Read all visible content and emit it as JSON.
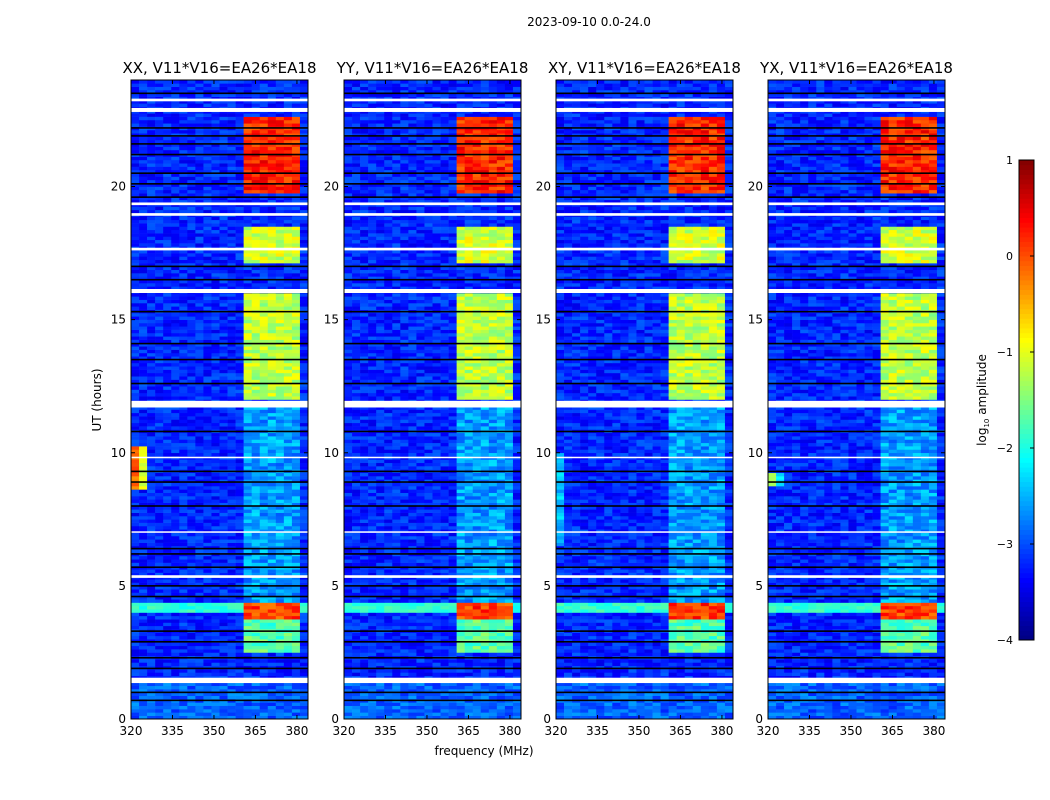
{
  "chart_data": {
    "type": "heatmap",
    "suptitle": "2023-09-10 0.0-24.0",
    "xlabel": "frequency (MHz)",
    "ylabel": "UT (hours)",
    "xlim": [
      320,
      384
    ],
    "ylim": [
      0,
      24
    ],
    "xticks": [
      "320",
      "335",
      "350",
      "365",
      "380"
    ],
    "xtick_values": [
      320,
      335,
      350,
      365,
      380
    ],
    "yticks": [
      "0",
      "5",
      "10",
      "15",
      "20"
    ],
    "ytick_values": [
      0,
      5,
      10,
      15,
      20
    ],
    "colorbar": {
      "label": "log10 amplitude",
      "label_main": "log",
      "label_sub": "10",
      "label_rest": " amplitude",
      "range": [
        -4,
        1
      ],
      "ticks": [
        "−4",
        "−3",
        "−2",
        "−1",
        "0",
        "1"
      ],
      "tick_values": [
        -4,
        -3,
        -2,
        -1,
        0,
        1
      ],
      "colormap": "jet"
    },
    "background_level": -3.2,
    "flagged_white_hours": [
      [
        1.35,
        1.55
      ],
      [
        11.7,
        11.95
      ],
      [
        16.0,
        16.15
      ],
      [
        17.6,
        17.7
      ],
      [
        18.9,
        19.0
      ],
      [
        19.3,
        19.4
      ],
      [
        22.8,
        22.95
      ],
      [
        23.2,
        23.3
      ],
      [
        5.3,
        5.4
      ],
      [
        7.0,
        7.05
      ],
      [
        9.8,
        9.85
      ]
    ],
    "black_line_hours": [
      0.7,
      1.0,
      1.9,
      2.3,
      2.9,
      3.3,
      4.6,
      5.0,
      5.7,
      6.2,
      6.4,
      8.0,
      8.9,
      9.3,
      10.8,
      12.6,
      13.5,
      14.1,
      15.3,
      16.5,
      17.0,
      19.6,
      20.1,
      20.5,
      21.2,
      21.6,
      21.9,
      22.2,
      23.5
    ],
    "bright_band_mhz": [
      362,
      382
    ],
    "bright_subcolumns_mhz": [
      [
        362,
        366.5
      ],
      [
        367.5,
        371
      ],
      [
        372,
        375.5
      ],
      [
        376.5,
        381
      ]
    ],
    "features": [
      {
        "hours": [
          11.95,
          16.0
        ],
        "level": -1.2
      },
      {
        "hours": [
          17.1,
          18.5
        ],
        "level": -1.1
      },
      {
        "hours": [
          19.8,
          22.6
        ],
        "level": 0.2
      },
      {
        "hours": [
          3.7,
          4.4
        ],
        "level": 0.1
      },
      {
        "hours": [
          2.5,
          3.7
        ],
        "level": -1.7
      },
      {
        "hours": [
          4.4,
          11.7
        ],
        "level": -2.6
      }
    ],
    "broadband_events": [
      {
        "hours": [
          4.0,
          4.4
        ],
        "level": -1.9
      }
    ],
    "panels": [
      {
        "title": "XX, V11*V16=EA26*EA18",
        "low_edge_event": {
          "hours": [
            8.6,
            10.2
          ],
          "level": 0.3
        }
      },
      {
        "title": "YY, V11*V16=EA26*EA18",
        "low_edge_event": null
      },
      {
        "title": "XY, V11*V16=EA26*EA18",
        "low_edge_event": {
          "hours": [
            6.5,
            10.0
          ],
          "level": -2.0
        }
      },
      {
        "title": "YX, V11*V16=EA26*EA18",
        "low_edge_event": {
          "hours": [
            8.8,
            9.2
          ],
          "level": -1.0
        }
      }
    ]
  }
}
